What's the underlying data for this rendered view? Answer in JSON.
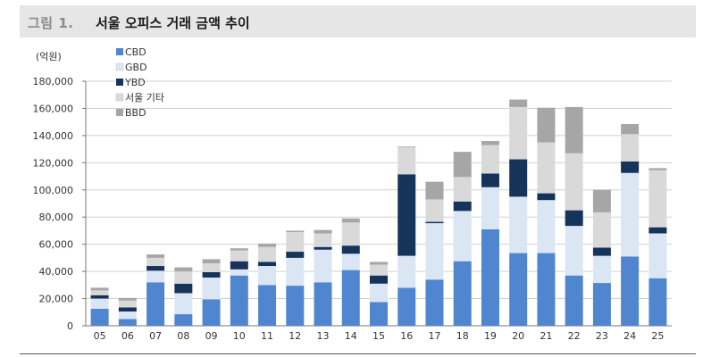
{
  "figure": {
    "label": "그림 1.",
    "title": "서울 오피스 거래 금액 추이"
  },
  "chart_data": {
    "type": "bar",
    "stacked": true,
    "ylabel": "(억원)",
    "ylim": [
      0,
      180000
    ],
    "yticks": [
      0,
      20000,
      40000,
      60000,
      80000,
      100000,
      120000,
      140000,
      160000,
      180000
    ],
    "ytick_labels": [
      "0",
      "20,000",
      "40,000",
      "60,000",
      "80,000",
      "100,000",
      "120,000",
      "140,000",
      "160,000",
      "180,000"
    ],
    "grid": true,
    "legend_position": "top-left",
    "categories": [
      "05",
      "06",
      "07",
      "08",
      "09",
      "10",
      "11",
      "12",
      "13",
      "14",
      "15",
      "16",
      "17",
      "18",
      "19",
      "20",
      "21",
      "22",
      "23",
      "24",
      "25"
    ],
    "series": [
      {
        "name": "CBD",
        "color": "#4f86cf",
        "values": [
          12500,
          5000,
          32000,
          8500,
          19500,
          37000,
          30000,
          29500,
          32000,
          41000,
          17500,
          28000,
          34000,
          47500,
          71000,
          53500,
          53500,
          37000,
          31500,
          51000,
          35000
        ]
      },
      {
        "name": "GBD",
        "color": "#dbe6f5",
        "values": [
          7500,
          5500,
          8500,
          15500,
          16000,
          4500,
          14000,
          20500,
          24000,
          12000,
          13500,
          23500,
          41500,
          37000,
          31000,
          41500,
          39000,
          36500,
          20000,
          61500,
          33000
        ]
      },
      {
        "name": "YBD",
        "color": "#16335a",
        "values": [
          2500,
          3000,
          3500,
          7000,
          4000,
          6000,
          3000,
          4500,
          2000,
          6000,
          6000,
          60000,
          1000,
          7000,
          10000,
          27500,
          5000,
          11500,
          6000,
          8500,
          4500
        ]
      },
      {
        "name": "서울 기타",
        "color": "#d9d9d9",
        "values": [
          3500,
          5000,
          6000,
          9000,
          6500,
          8000,
          11000,
          14500,
          10000,
          17000,
          8000,
          20000,
          16500,
          18000,
          21000,
          38500,
          37500,
          42000,
          26000,
          20000,
          42000
        ]
      },
      {
        "name": "BBD",
        "color": "#a6a6a6",
        "values": [
          2000,
          2000,
          2500,
          3000,
          3000,
          1500,
          2500,
          1000,
          2500,
          3000,
          2000,
          500,
          13000,
          18500,
          3000,
          5500,
          25500,
          34000,
          16500,
          7500,
          1500
        ]
      }
    ]
  }
}
